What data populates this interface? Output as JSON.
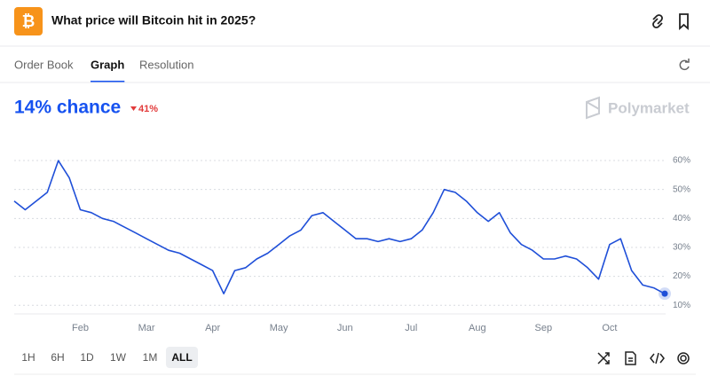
{
  "header": {
    "icon": "₿",
    "title": "What price will Bitcoin hit in 2025?"
  },
  "tabs": [
    "Order Book",
    "Graph",
    "Resolution"
  ],
  "active_tab": 1,
  "chance": {
    "label": "14% chance",
    "change": "41%"
  },
  "brand": "Polymarket",
  "range_buttons": [
    "1H",
    "6H",
    "1D",
    "1W",
    "1M",
    "ALL"
  ],
  "active_range": 5,
  "chart_data": {
    "type": "line",
    "color": "#1f4fd8",
    "categories": [
      null,
      null,
      null,
      null,
      null,
      null,
      "Feb",
      null,
      null,
      null,
      null,
      null,
      "Mar",
      null,
      null,
      null,
      null,
      null,
      "Apr",
      null,
      null,
      null,
      null,
      null,
      "May",
      null,
      null,
      null,
      null,
      null,
      "Jun",
      null,
      null,
      null,
      null,
      null,
      "Jul",
      null,
      null,
      null,
      null,
      null,
      "Aug",
      null,
      null,
      null,
      null,
      null,
      "Sep",
      null,
      null,
      null,
      null,
      null,
      "Oct",
      null,
      null,
      null,
      null,
      null
    ],
    "values": [
      46,
      43,
      46,
      49,
      60,
      54,
      43,
      42,
      40,
      39,
      37,
      35,
      33,
      31,
      29,
      28,
      26,
      24,
      22,
      14,
      22,
      23,
      26,
      28,
      31,
      34,
      36,
      41,
      42,
      39,
      36,
      33,
      33,
      32,
      33,
      32,
      33,
      36,
      42,
      50,
      49,
      46,
      42,
      39,
      42,
      35,
      31,
      29,
      26,
      26,
      27,
      26,
      23,
      19,
      31,
      33,
      22,
      17,
      16,
      14
    ],
    "ylim": [
      7,
      64
    ],
    "yticks": [
      {
        "value": 10,
        "label": "10%"
      },
      {
        "value": 20,
        "label": "20%"
      },
      {
        "value": 30,
        "label": "30%"
      },
      {
        "value": 40,
        "label": "40%"
      },
      {
        "value": 50,
        "label": "50%"
      },
      {
        "value": 60,
        "label": "60%"
      }
    ],
    "grid": true
  }
}
